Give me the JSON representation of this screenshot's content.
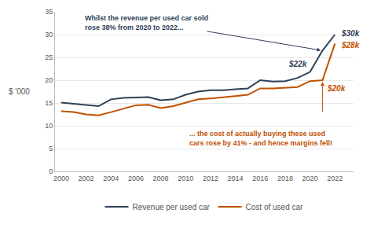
{
  "chart_data": {
    "type": "line",
    "x": [
      2000,
      2001,
      2002,
      2003,
      2004,
      2005,
      2006,
      2007,
      2008,
      2009,
      2010,
      2011,
      2012,
      2013,
      2014,
      2015,
      2016,
      2017,
      2018,
      2019,
      2020,
      2021,
      2022
    ],
    "series": [
      {
        "name": "Revenue per used car",
        "color": "#2E4057",
        "values": [
          15.1,
          14.8,
          14.5,
          14.3,
          15.8,
          16.1,
          16.2,
          16.3,
          15.6,
          15.8,
          16.8,
          17.5,
          17.8,
          17.8,
          18.0,
          18.2,
          20.0,
          19.7,
          19.8,
          20.5,
          21.8,
          26.5,
          30.0
        ]
      },
      {
        "name": "Cost of used car",
        "color": "#C05000",
        "values": [
          13.2,
          13.0,
          12.5,
          12.3,
          13.0,
          13.8,
          14.5,
          14.6,
          13.9,
          14.3,
          15.0,
          15.8,
          16.0,
          16.2,
          16.5,
          16.8,
          18.2,
          18.2,
          18.3,
          18.5,
          19.8,
          20.0,
          28.0
        ]
      }
    ],
    "xlim": [
      1999.5,
      2023.5
    ],
    "xticks": [
      2000,
      2002,
      2004,
      2006,
      2008,
      2010,
      2012,
      2014,
      2016,
      2018,
      2020,
      2022
    ],
    "ylim": [
      0,
      35
    ],
    "yticks": [
      0,
      5,
      10,
      15,
      20,
      25,
      30,
      35
    ],
    "ylabel": "$ '000",
    "grid": "y",
    "legend": "bottom",
    "annotations": [
      {
        "text": "Whilst the revenue per used car sold\nrose 38% from 2020 to 2022...",
        "color": "#2E4057",
        "series": "Revenue per used car",
        "x": 2021
      },
      {
        "text": "... the cost of actually buying these used\ncars rose by 41% - and hence margins fell!",
        "color": "#C05000",
        "series": "Cost of used car",
        "x": 2021
      }
    ],
    "point_labels": [
      {
        "text": "$30k",
        "color": "#2E4057",
        "series": "Revenue per used car",
        "x": 2022
      },
      {
        "text": "$22k",
        "color": "#2E4057",
        "series": "Revenue per used car",
        "x": 2020
      },
      {
        "text": "$28k",
        "color": "#C05000",
        "series": "Cost of used car",
        "x": 2022
      },
      {
        "text": "$20k",
        "color": "#C05000",
        "series": "Cost of used car",
        "x": 2021
      }
    ]
  }
}
